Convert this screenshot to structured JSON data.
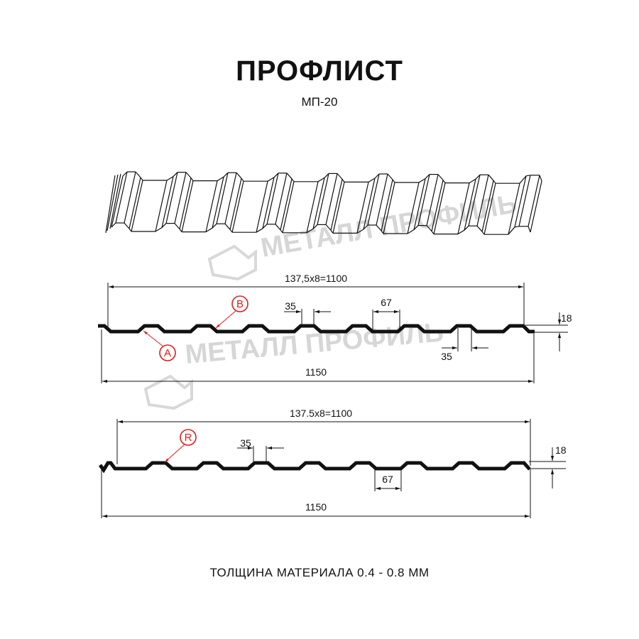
{
  "header": {
    "title": "ПРОФЛИСТ",
    "subtitle": "МП-20"
  },
  "watermark": {
    "text": "МЕТАЛЛ ПРОФИЛЬ",
    "color": "#d6d6d6"
  },
  "profile_a": {
    "pitch_label": "137,5x8=1100",
    "width_label": "1150",
    "crest_label": "35",
    "crest_label_2": "35",
    "valley_label": "67",
    "height_label": "18",
    "marker_a": "A",
    "marker_b": "B"
  },
  "profile_r": {
    "pitch_label": "137.5x8=1100",
    "width_label": "1150",
    "crest_label": "35",
    "valley_label": "67",
    "height_label": "18",
    "marker_r": "R"
  },
  "colors": {
    "marker": "#e21a1a",
    "line": "#111111"
  },
  "footer": {
    "thickness": "ТОЛЩИНА МАТЕРИАЛА 0.4 - 0.8 ММ"
  }
}
